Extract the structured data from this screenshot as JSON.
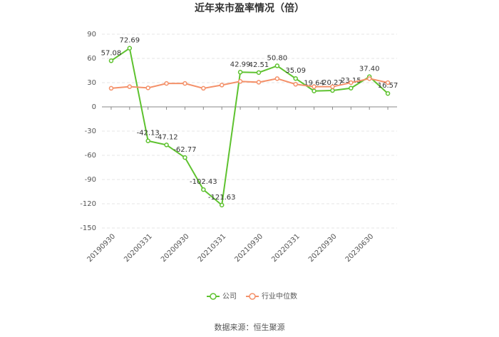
{
  "chart_data": {
    "type": "line",
    "title": "近年来市盈率情况（倍）",
    "categories": [
      "20190930",
      null,
      "20200331",
      null,
      "20200930",
      null,
      "20210331",
      null,
      "20210930",
      null,
      "20220331",
      null,
      "20220930",
      null,
      "20230630",
      null
    ],
    "series": [
      {
        "name": "公司",
        "color": "#5ec22f",
        "values": [
          57.08,
          72.69,
          -42.13,
          -47.12,
          -62.77,
          -102.43,
          -121.63,
          42.99,
          42.51,
          50.8,
          35.09,
          19.64,
          20.27,
          23.15,
          37.4,
          16.57
        ],
        "value_labels": [
          "57.08",
          "72.69",
          "-42.13",
          "-47.12",
          "-62.77",
          "-102.43",
          "-121.63",
          "42.99",
          "42.51",
          "50.80",
          "35.09",
          "19.64",
          "20.27",
          "23.15",
          "37.40",
          "16.57"
        ]
      },
      {
        "name": "行业中位数",
        "color": "#f4916a",
        "values": [
          23,
          25,
          23.5,
          29,
          29,
          23,
          27,
          31.5,
          30.5,
          35,
          28,
          25,
          25,
          30,
          35,
          30
        ]
      }
    ],
    "ylim": [
      -150,
      90
    ],
    "yticks": [
      -150,
      -120,
      -90,
      -60,
      -30,
      0,
      30,
      60,
      90
    ],
    "grid": true,
    "source": "数据来源：恒生聚源"
  }
}
